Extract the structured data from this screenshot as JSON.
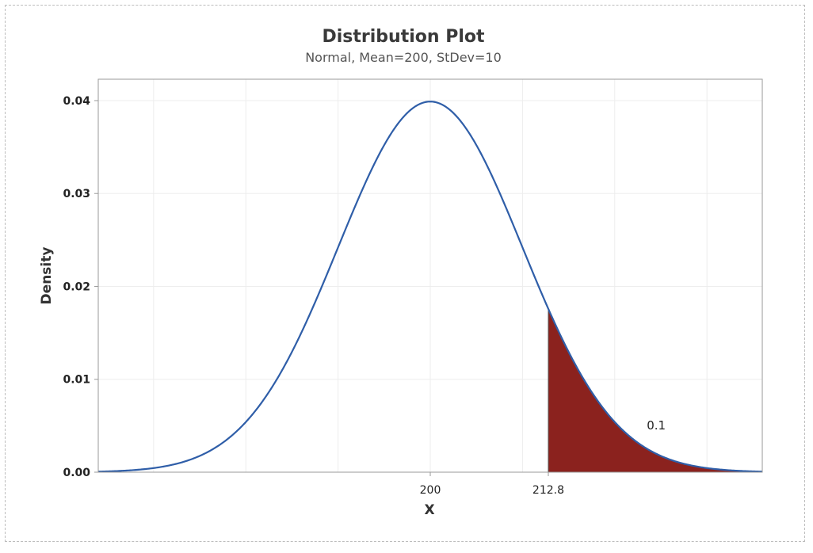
{
  "chart_data": {
    "type": "area",
    "title": "Distribution Plot",
    "subtitle": "Normal, Mean=200, StDev=10",
    "distribution": "normal",
    "mean": 200,
    "stdev": 10,
    "xlabel": "X",
    "ylabel": "Density",
    "xlim": [
      164,
      236
    ],
    "ylim": [
      0,
      0.0423
    ],
    "y_ticks": [
      0.0,
      0.01,
      0.02,
      0.03,
      0.04
    ],
    "y_tick_labels": [
      "0.00",
      "0.01",
      "0.02",
      "0.03",
      "0.04"
    ],
    "x_ticks": [
      200,
      212.8
    ],
    "x_tick_labels": [
      "200",
      "212.8"
    ],
    "shaded_region": {
      "from": 212.8,
      "to": 236,
      "probability_label": "0.1",
      "label_x": 224.5,
      "label_y": 0.0046
    },
    "grid": true,
    "colors": {
      "curve": "#2f5ea8",
      "shade": "#8b221e",
      "grid": "#ededed",
      "axis": "#9a9a9a"
    }
  }
}
